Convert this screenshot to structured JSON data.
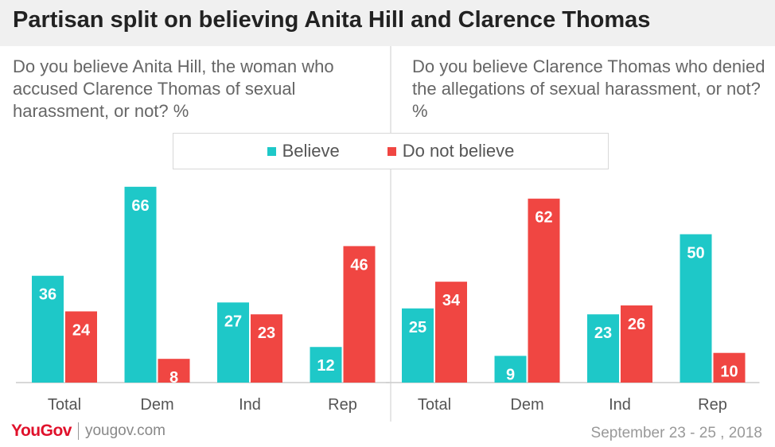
{
  "title": "Partisan split on believing Anita Hill and Clarence Thomas",
  "colors": {
    "believe": "#1ec8c8",
    "not_believe": "#f04642"
  },
  "legend": {
    "believe": "Believe",
    "not_believe": "Do not believe"
  },
  "chart_data": [
    {
      "type": "bar",
      "title": "Do you believe Anita Hill, the woman who accused Clarence Thomas of sexual harassment, or not? %",
      "categories": [
        "Total",
        "Dem",
        "Ind",
        "Rep"
      ],
      "series": [
        {
          "name": "Believe",
          "values": [
            36,
            66,
            27,
            12
          ]
        },
        {
          "name": "Do not believe",
          "values": [
            24,
            8,
            23,
            46
          ]
        }
      ],
      "ylim": [
        0,
        70
      ],
      "grid": false,
      "legend_placement": "top-center"
    },
    {
      "type": "bar",
      "title": "Do you believe Clarence Thomas who denied the allegations of sexual harassment, or not? %",
      "categories": [
        "Total",
        "Dem",
        "Ind",
        "Rep"
      ],
      "series": [
        {
          "name": "Believe",
          "values": [
            25,
            9,
            23,
            50
          ]
        },
        {
          "name": "Do not believe",
          "values": [
            34,
            62,
            26,
            10
          ]
        }
      ],
      "ylim": [
        0,
        70
      ],
      "grid": false,
      "legend_placement": "top-center"
    }
  ],
  "footer": {
    "logo": "YouGov",
    "url": "yougov.com",
    "date": "September 23 - 25 , 2018"
  }
}
